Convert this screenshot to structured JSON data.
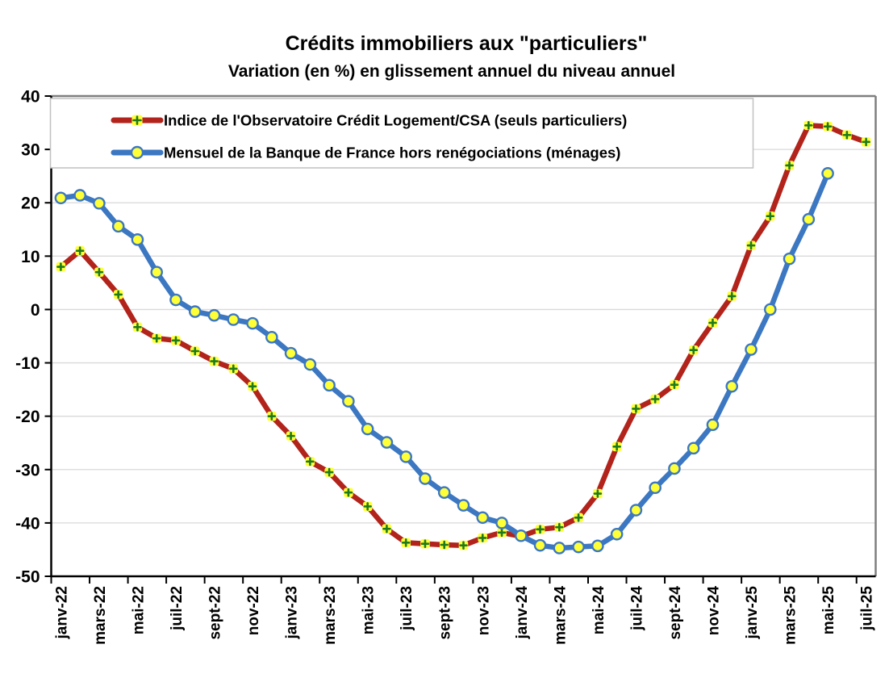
{
  "title": "Crédits immobiliers aux \"particuliers\"",
  "subtitle": "Variation (en %) en glissement annuel du niveau annuel",
  "colors": {
    "ocl_red": "#B2231B",
    "bdf_blue": "#3C77C2",
    "marker_yellow": "#FFFF38",
    "plus_green": "#1E7A1E",
    "grid_gray": "#D9D9D9",
    "border_gray": "#7F7F7F",
    "axis_black": "#000000",
    "legend_border": "#C0C0C0"
  },
  "chart_data": {
    "type": "line",
    "title": "Crédits immobiliers aux \"particuliers\"",
    "subtitle": "Variation (en %) en glissement annuel du niveau annuel",
    "xlabel": "",
    "ylabel": "",
    "ylim": [
      -50,
      40
    ],
    "y_ticks": [
      40,
      30,
      20,
      10,
      0,
      -10,
      -20,
      -30,
      -40,
      -50
    ],
    "grid": true,
    "legend_position": "top-left-box",
    "categories": [
      "janv-22",
      "févr-22",
      "mars-22",
      "avr-22",
      "mai-22",
      "juin-22",
      "juil-22",
      "août-22",
      "sept-22",
      "oct-22",
      "nov-22",
      "déc-22",
      "janv-23",
      "févr-23",
      "mars-23",
      "avr-23",
      "mai-23",
      "juin-23",
      "juil-23",
      "août-23",
      "sept-23",
      "oct-23",
      "nov-23",
      "déc-23",
      "janv-24",
      "févr-24",
      "mars-24",
      "avr-24",
      "mai-24",
      "juin-24",
      "juil-24",
      "août-24",
      "sept-24",
      "oct-24",
      "nov-24",
      "déc-24",
      "janv-25",
      "févr-25",
      "mars-25",
      "avr-25",
      "mai-25",
      "juin-25",
      "juil-25"
    ],
    "x_tick_labels": [
      "janv-22",
      "mars-22",
      "mai-22",
      "juil-22",
      "sept-22",
      "nov-22",
      "janv-23",
      "mars-23",
      "mai-23",
      "juil-23",
      "sept-23",
      "nov-23",
      "janv-24",
      "mars-24",
      "mai-24",
      "juil-24",
      "sept-24",
      "nov-24",
      "janv-25",
      "mars-25",
      "mai-25",
      "juil-25"
    ],
    "series": [
      {
        "name": "Indice de l'Observatoire Crédit Logement/CSA (seuls particuliers)",
        "color": "#B2231B",
        "marker": "square-plus",
        "marker_fill": "#FFFF38",
        "marker_plus_color": "#1E7A1E",
        "values": [
          8.0,
          11.0,
          7.0,
          2.8,
          -3.3,
          -5.4,
          -5.8,
          -7.8,
          -9.7,
          -11.1,
          -14.4,
          -20.0,
          -23.7,
          -28.5,
          -30.5,
          -34.3,
          -36.9,
          -41.1,
          -43.7,
          -43.9,
          -44.1,
          -44.2,
          -42.8,
          -41.8,
          -42.5,
          -41.2,
          -40.8,
          -39.0,
          -34.5,
          -25.7,
          -18.6,
          -16.8,
          -14.1,
          -7.6,
          -2.5,
          2.5,
          12.0,
          17.5,
          27.0,
          34.5,
          34.3,
          32.7,
          31.4
        ]
      },
      {
        "name": "Mensuel de la Banque de France hors renégociations (ménages)",
        "color": "#3C77C2",
        "marker": "circle",
        "marker_fill": "#FFFF38",
        "values": [
          20.9,
          21.4,
          19.9,
          15.6,
          13.1,
          7.0,
          1.8,
          -0.4,
          -1.1,
          -1.9,
          -2.6,
          -5.2,
          -8.2,
          -10.3,
          -14.2,
          -17.2,
          -22.4,
          -24.9,
          -27.6,
          -31.7,
          -34.3,
          -36.7,
          -39.0,
          -40.0,
          -42.4,
          -44.2,
          -44.7,
          -44.5,
          -44.3,
          -42.1,
          -37.6,
          -33.4,
          -29.8,
          -26.0,
          -21.6,
          -14.4,
          -7.5,
          0.0,
          9.5,
          16.9,
          25.5,
          null,
          null
        ]
      }
    ]
  }
}
